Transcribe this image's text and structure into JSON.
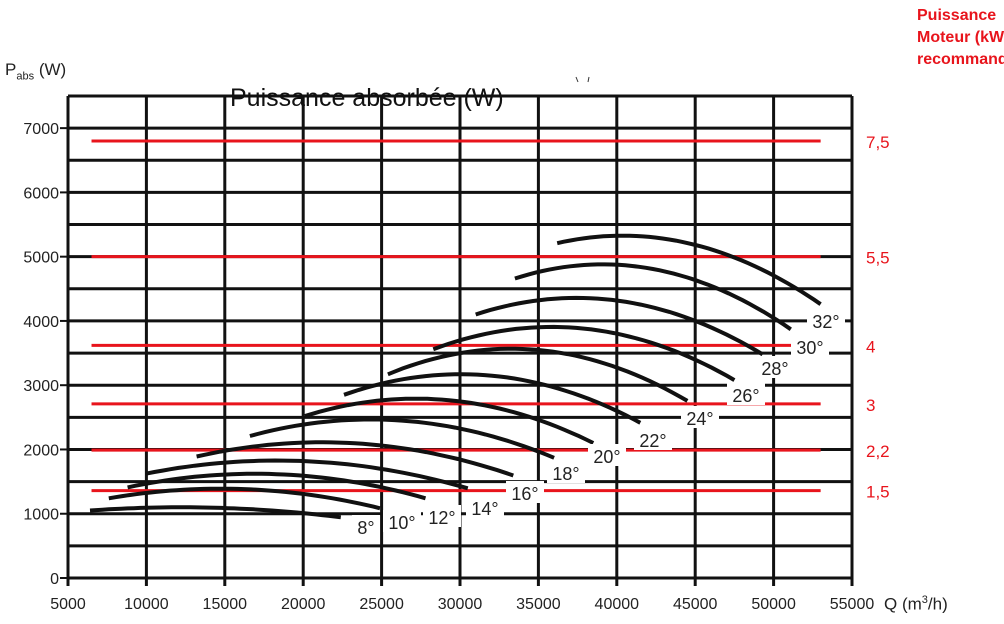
{
  "chart_data": {
    "type": "line",
    "title": "Puissance absorbée (W)",
    "ylabel": {
      "main": "P",
      "sub": "abs",
      "unit": "(W)"
    },
    "xlabel": {
      "main": "Q (m",
      "sup": "3",
      "end": "/h)"
    },
    "right_axis_title": [
      "Puissance",
      "Moteur (kW)",
      "recommandé"
    ],
    "xlim": [
      5000,
      55000
    ],
    "ylim": [
      0,
      7500
    ],
    "x_ticks": [
      5000,
      10000,
      15000,
      20000,
      25000,
      30000,
      35000,
      40000,
      45000,
      50000,
      55000
    ],
    "y_ticks": [
      0,
      1000,
      2000,
      3000,
      4000,
      5000,
      6000,
      7000
    ],
    "grid": {
      "x_step": 5000,
      "y_step": 500,
      "on": true
    },
    "colors": {
      "curve": "#111111",
      "motor_line": "#e8141c",
      "grid": "#111111"
    },
    "motor_lines": [
      {
        "label": "7,5",
        "kw": 7.5,
        "p_w": 6800
      },
      {
        "label": "5,5",
        "kw": 5.5,
        "p_w": 5000
      },
      {
        "label": "4",
        "kw": 4,
        "p_w": 3620
      },
      {
        "label": "3",
        "kw": 3,
        "p_w": 2710
      },
      {
        "label": "2,2",
        "kw": 2.2,
        "p_w": 1990
      },
      {
        "label": "1,5",
        "kw": 1.5,
        "p_w": 1360
      }
    ],
    "motor_lines_q_range": [
      6500,
      53000
    ],
    "series": [
      {
        "name": "8°",
        "points": [
          [
            6400,
            1050
          ],
          [
            11800,
            1100
          ],
          [
            22400,
            945
          ]
        ]
      },
      {
        "name": "10°",
        "points": [
          [
            7600,
            1240
          ],
          [
            15000,
            1390
          ],
          [
            24900,
            1085
          ]
        ]
      },
      {
        "name": "12°",
        "points": [
          [
            8800,
            1410
          ],
          [
            15000,
            1610
          ],
          [
            27800,
            1240
          ]
        ]
      },
      {
        "name": "14°",
        "points": [
          [
            10000,
            1625
          ],
          [
            16250,
            1815
          ],
          [
            30500,
            1395
          ]
        ]
      },
      {
        "name": "16°",
        "points": [
          [
            13200,
            1890
          ],
          [
            20500,
            2110
          ],
          [
            33400,
            1595
          ]
        ]
      },
      {
        "name": "18°",
        "points": [
          [
            16600,
            2210
          ],
          [
            23000,
            2460
          ],
          [
            36000,
            1870
          ]
        ]
      },
      {
        "name": "20°",
        "points": [
          [
            20100,
            2520
          ],
          [
            26850,
            2790
          ],
          [
            38500,
            2100
          ]
        ]
      },
      {
        "name": "22°",
        "points": [
          [
            22600,
            2850
          ],
          [
            29700,
            3170
          ],
          [
            41500,
            2415
          ]
        ]
      },
      {
        "name": "24°",
        "points": [
          [
            25400,
            3170
          ],
          [
            32200,
            3560
          ],
          [
            44500,
            2755
          ]
        ]
      },
      {
        "name": "26°",
        "points": [
          [
            28300,
            3560
          ],
          [
            34800,
            3900
          ],
          [
            47500,
            3080
          ]
        ]
      },
      {
        "name": "28°",
        "points": [
          [
            31000,
            4100
          ],
          [
            38600,
            4350
          ],
          [
            49300,
            3480
          ]
        ]
      },
      {
        "name": "30°",
        "points": [
          [
            33500,
            4660
          ],
          [
            39000,
            4880
          ],
          [
            51100,
            3870
          ]
        ]
      },
      {
        "name": "32°",
        "points": [
          [
            36200,
            5210
          ],
          [
            39900,
            5325
          ],
          [
            53000,
            4260
          ]
        ]
      }
    ]
  }
}
